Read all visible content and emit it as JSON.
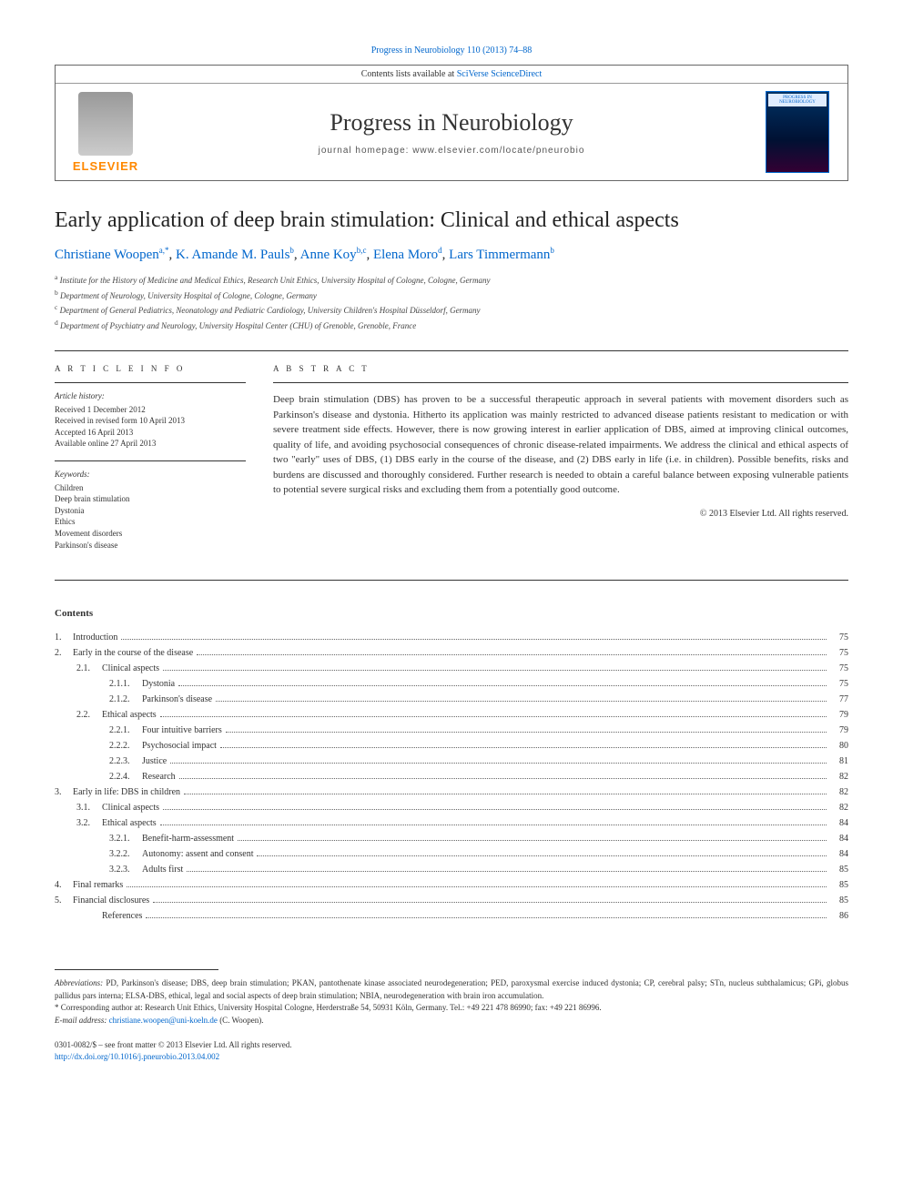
{
  "topLink": {
    "text": "Progress in Neurobiology 110 (2013) 74–88",
    "href": "#"
  },
  "headerTop": {
    "prefix": "Contents lists available at ",
    "linkText": "SciVerse ScienceDirect"
  },
  "journalTitle": "Progress in Neurobiology",
  "journalHome": "journal homepage: www.elsevier.com/locate/pneurobio",
  "elsevierWord": "ELSEVIER",
  "coverLabel": "PROGRESS IN NEUROBIOLOGY",
  "articleTitle": "Early application of deep brain stimulation: Clinical and ethical aspects",
  "authors": [
    {
      "name": "Christiane Woopen",
      "sup": "a,*"
    },
    {
      "name": "K. Amande M. Pauls",
      "sup": "b"
    },
    {
      "name": "Anne Koy",
      "sup": "b,c"
    },
    {
      "name": "Elena Moro",
      "sup": "d"
    },
    {
      "name": "Lars Timmermann",
      "sup": "b"
    }
  ],
  "affiliations": [
    {
      "sup": "a",
      "text": "Institute for the History of Medicine and Medical Ethics, Research Unit Ethics, University Hospital of Cologne, Cologne, Germany"
    },
    {
      "sup": "b",
      "text": "Department of Neurology, University Hospital of Cologne, Cologne, Germany"
    },
    {
      "sup": "c",
      "text": "Department of General Pediatrics, Neonatology and Pediatric Cardiology, University Children's Hospital Düsseldorf, Germany"
    },
    {
      "sup": "d",
      "text": "Department of Psychiatry and Neurology, University Hospital Center (CHU) of Grenoble, Grenoble, France"
    }
  ],
  "infoHead": "A R T I C L E   I N F O",
  "absHead": "A B S T R A C T",
  "history": {
    "head": "Article history:",
    "lines": [
      "Received 1 December 2012",
      "Received in revised form 10 April 2013",
      "Accepted 16 April 2013",
      "Available online 27 April 2013"
    ]
  },
  "keywords": {
    "head": "Keywords:",
    "items": [
      "Children",
      "Deep brain stimulation",
      "Dystonia",
      "Ethics",
      "Movement disorders",
      "Parkinson's disease"
    ]
  },
  "abstract": "Deep brain stimulation (DBS) has proven to be a successful therapeutic approach in several patients with movement disorders such as Parkinson's disease and dystonia. Hitherto its application was mainly restricted to advanced disease patients resistant to medication or with severe treatment side effects. However, there is now growing interest in earlier application of DBS, aimed at improving clinical outcomes, quality of life, and avoiding psychosocial consequences of chronic disease-related impairments. We address the clinical and ethical aspects of two \"early\" uses of DBS, (1) DBS early in the course of the disease, and (2) DBS early in life (i.e. in children). Possible benefits, risks and burdens are discussed and thoroughly considered. Further research is needed to obtain a careful balance between exposing vulnerable patients to potential severe surgical risks and excluding them from a potentially good outcome.",
  "copyright": "© 2013 Elsevier Ltd. All rights reserved.",
  "contentsHead": "Contents",
  "toc": [
    {
      "lvl": 0,
      "num": "1.",
      "text": "Introduction",
      "page": "75"
    },
    {
      "lvl": 0,
      "num": "2.",
      "text": "Early in the course of the disease",
      "page": "75"
    },
    {
      "lvl": 1,
      "num": "2.1.",
      "text": "Clinical aspects",
      "page": "75"
    },
    {
      "lvl": 2,
      "num": "2.1.1.",
      "text": "Dystonia",
      "page": "75"
    },
    {
      "lvl": 2,
      "num": "2.1.2.",
      "text": "Parkinson's disease",
      "page": "77"
    },
    {
      "lvl": 1,
      "num": "2.2.",
      "text": "Ethical aspects",
      "page": "79"
    },
    {
      "lvl": 2,
      "num": "2.2.1.",
      "text": "Four intuitive barriers",
      "page": "79"
    },
    {
      "lvl": 2,
      "num": "2.2.2.",
      "text": "Psychosocial impact",
      "page": "80"
    },
    {
      "lvl": 2,
      "num": "2.2.3.",
      "text": "Justice",
      "page": "81"
    },
    {
      "lvl": 2,
      "num": "2.2.4.",
      "text": "Research",
      "page": "82"
    },
    {
      "lvl": 0,
      "num": "3.",
      "text": "Early in life: DBS in children",
      "page": "82"
    },
    {
      "lvl": 1,
      "num": "3.1.",
      "text": "Clinical aspects",
      "page": "82"
    },
    {
      "lvl": 1,
      "num": "3.2.",
      "text": "Ethical aspects",
      "page": "84"
    },
    {
      "lvl": 2,
      "num": "3.2.1.",
      "text": "Benefit-harm-assessment",
      "page": "84"
    },
    {
      "lvl": 2,
      "num": "3.2.2.",
      "text": "Autonomy: assent and consent",
      "page": "84"
    },
    {
      "lvl": 2,
      "num": "3.2.3.",
      "text": "Adults first",
      "page": "85"
    },
    {
      "lvl": 0,
      "num": "4.",
      "text": "Final remarks",
      "page": "85"
    },
    {
      "lvl": 0,
      "num": "5.",
      "text": "Financial disclosures",
      "page": "85"
    },
    {
      "lvl": 1,
      "num": "",
      "text": "References",
      "page": "86"
    }
  ],
  "abbrev": {
    "label": "Abbreviations:",
    "text": " PD, Parkinson's disease; DBS, deep brain stimulation; PKAN, pantothenate kinase associated neurodegeneration; PED, paroxysmal exercise induced dystonia; CP, cerebral palsy; STn, nucleus subthalamicus; GPi, globus pallidus pars interna; ELSA-DBS, ethical, legal and social aspects of deep brain stimulation; NBIA, neurodegeneration with brain iron accumulation."
  },
  "corresponding": {
    "star": "*",
    "text": " Corresponding author at: Research Unit Ethics, University Hospital Cologne, Herderstraße 54, 50931 Köln, Germany. Tel.: +49 221 478 86990; fax: +49 221 86996.",
    "emailLabel": "E-mail address: ",
    "email": "christiane.woopen@uni-koeln.de",
    "emailSuffix": " (C. Woopen)."
  },
  "issn": {
    "line1": "0301-0082/$ – see front matter © 2013 Elsevier Ltd. All rights reserved.",
    "doi": "http://dx.doi.org/10.1016/j.pneurobio.2013.04.002"
  },
  "colors": {
    "link": "#0066cc",
    "elsevier": "#ff8800",
    "rule": "#333333",
    "text": "#333333"
  }
}
